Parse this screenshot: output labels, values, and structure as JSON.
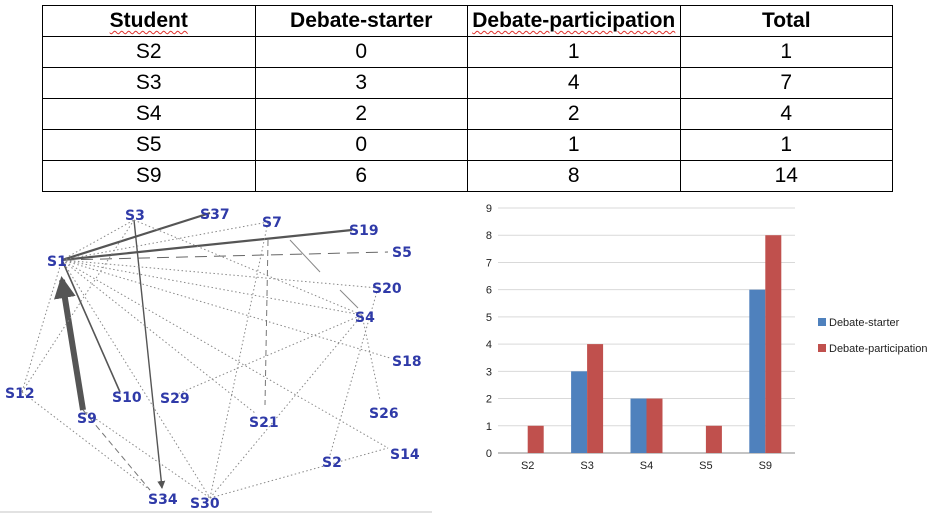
{
  "table": {
    "headers": [
      "Student",
      "Debate-starter",
      "Debate-participation",
      "Total"
    ],
    "rows": [
      [
        "S2",
        "0",
        "1",
        "1"
      ],
      [
        "S3",
        "3",
        "4",
        "7"
      ],
      [
        "S4",
        "2",
        "2",
        "4"
      ],
      [
        "S5",
        "0",
        "1",
        "1"
      ],
      [
        "S9",
        "6",
        "8",
        "14"
      ]
    ]
  },
  "network": {
    "nodes": [
      "S1",
      "S3",
      "S37",
      "S7",
      "S19",
      "S5",
      "S20",
      "S4",
      "S18",
      "S12",
      "S10",
      "S29",
      "S21",
      "S26",
      "S9",
      "S2",
      "S14",
      "S34",
      "S30"
    ]
  },
  "chart_data": {
    "type": "bar",
    "categories": [
      "S2",
      "S3",
      "S4",
      "S5",
      "S9"
    ],
    "series": [
      {
        "name": "Debate-starter",
        "values": [
          0,
          3,
          2,
          0,
          6
        ],
        "color": "#4f81bd"
      },
      {
        "name": "Debate-participation",
        "values": [
          1,
          4,
          2,
          1,
          8
        ],
        "color": "#c0504d"
      }
    ],
    "ylim": [
      0,
      9
    ],
    "yticks": [
      "0",
      "1",
      "2",
      "3",
      "4",
      "5",
      "6",
      "7",
      "8",
      "9"
    ],
    "grid": true,
    "legend_position": "right"
  }
}
